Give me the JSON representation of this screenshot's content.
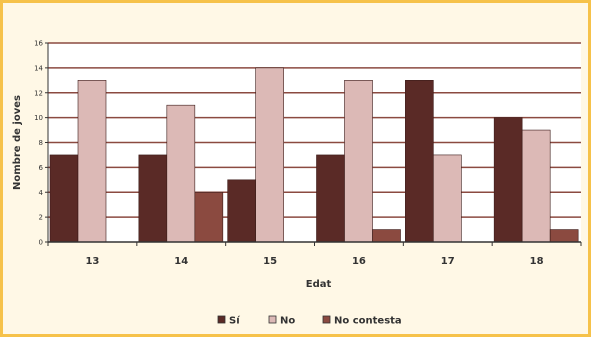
{
  "chart_data": {
    "type": "bar",
    "categories": [
      "13",
      "14",
      "15",
      "16",
      "17",
      "18"
    ],
    "series": [
      {
        "name": "Sí",
        "values": [
          7,
          7,
          5,
          7,
          13,
          10
        ],
        "color": "#5a2a26"
      },
      {
        "name": "No",
        "values": [
          13,
          11,
          14,
          13,
          7,
          9
        ],
        "color": "#dcb9b6"
      },
      {
        "name": "No contesta",
        "values": [
          0,
          4,
          0,
          1,
          0,
          1
        ],
        "color": "#8b4a40"
      }
    ],
    "xlabel": "Edat",
    "ylabel": "Nombre de joves",
    "ylim": [
      0,
      16
    ],
    "yticks": [
      0,
      2,
      4,
      6,
      8,
      10,
      12,
      14,
      16
    ],
    "grid": true,
    "legend_position": "bottom",
    "colors": {
      "plot_background": "#ffffff",
      "frame_background": "#fff8e6",
      "frame_border": "#f6c24a",
      "gridline": "#8b4a40",
      "axis": "#333333"
    }
  }
}
